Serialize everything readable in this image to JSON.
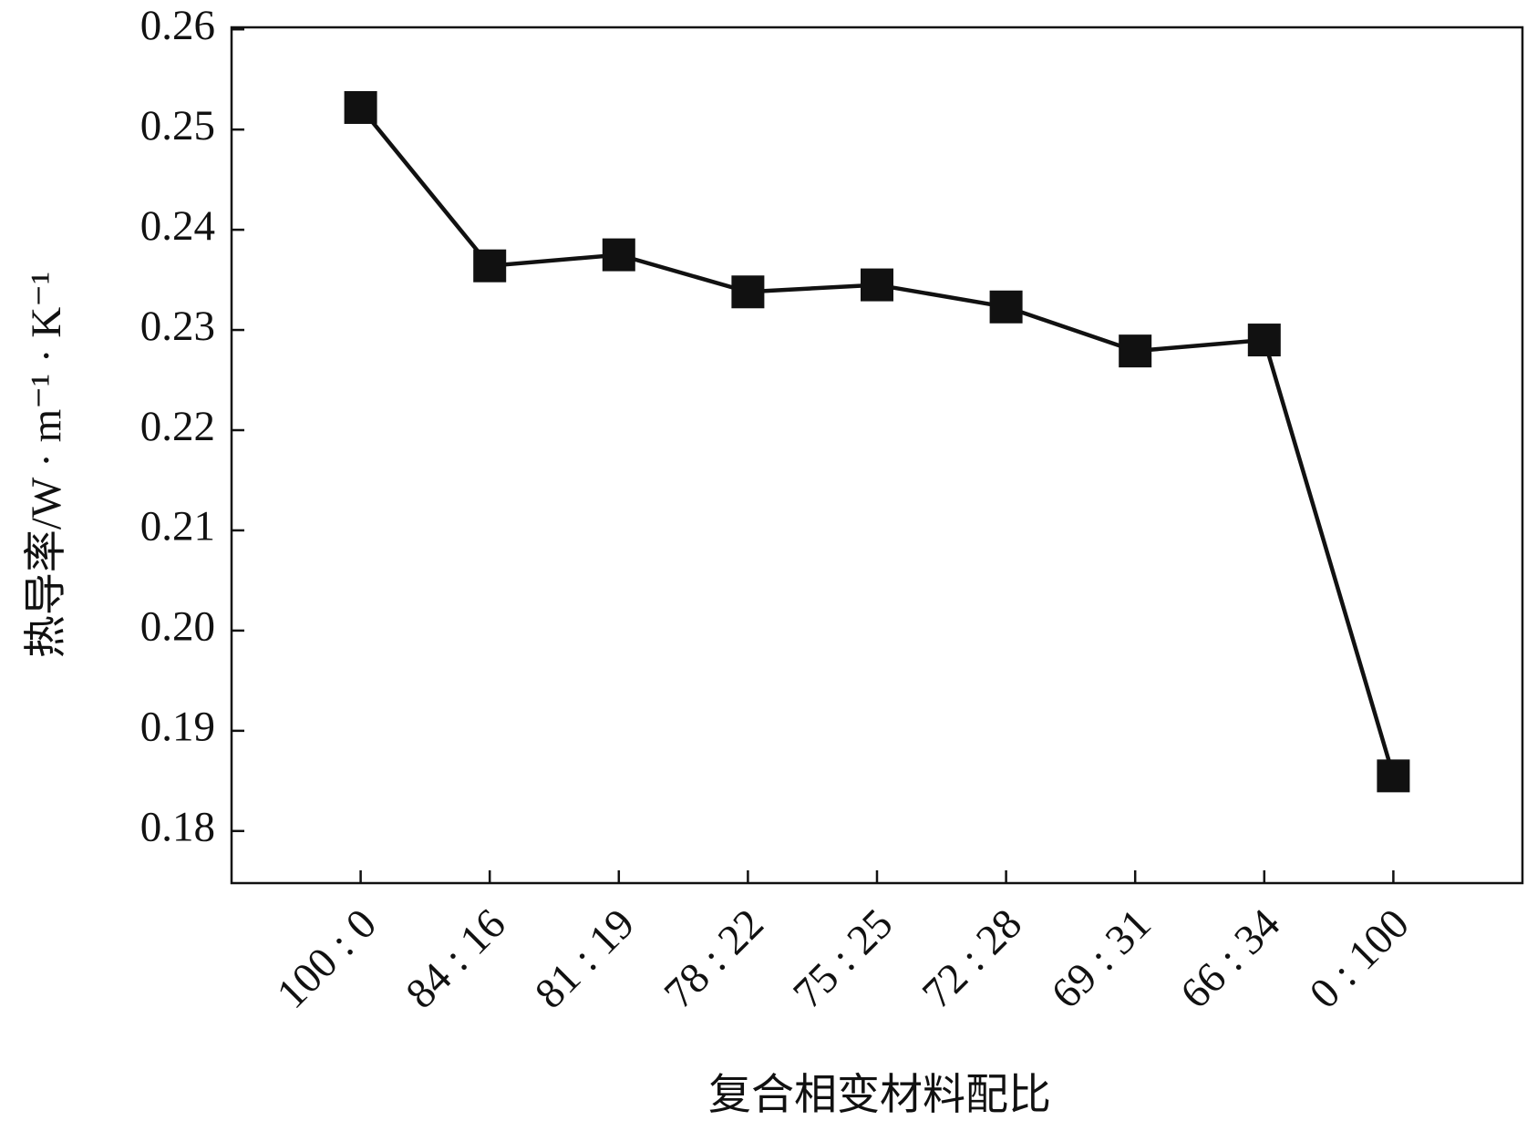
{
  "chart_data": {
    "type": "line",
    "x_label": "复合相变材料配比",
    "y_label": "热导率/W · m⁻¹ · K⁻¹",
    "categories": [
      "100 : 0",
      "84 : 16",
      "81 : 19",
      "78 : 22",
      "75 : 25",
      "72 : 28",
      "69 : 31",
      "66 : 34",
      "0 : 100"
    ],
    "series": [
      {
        "name": "热导率",
        "color": "#111111",
        "values": [
          0.2522,
          0.2364,
          0.2375,
          0.2338,
          0.2345,
          0.2323,
          0.2279,
          0.229,
          0.1855
        ]
      }
    ],
    "ylim": [
      0.1748,
      0.2602
    ],
    "yticks": [
      0.26,
      0.25,
      0.24,
      0.23,
      0.22,
      0.21,
      {
        "value": 0.2,
        "label": "0.20"
      },
      0.19,
      0.18
    ],
    "grid": false,
    "legend": false,
    "marker": "square"
  }
}
